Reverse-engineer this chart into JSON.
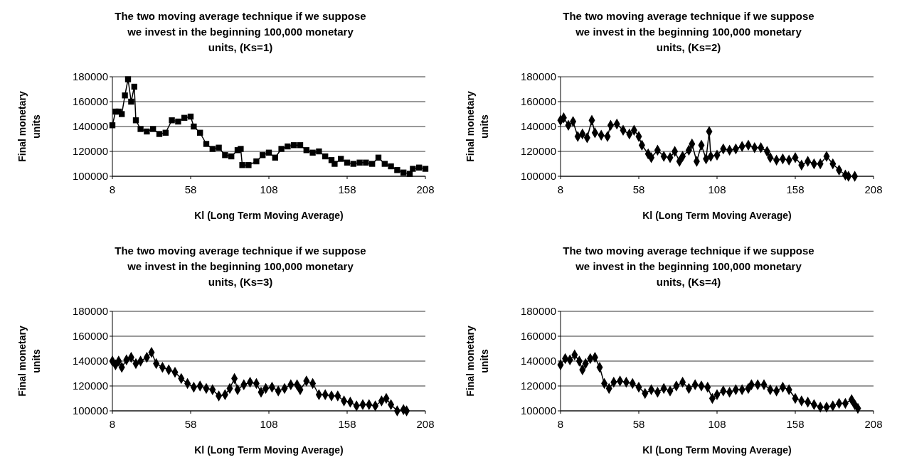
{
  "chart_data": [
    {
      "type": "line",
      "title": "The two moving average technique  if we suppose we invest in the beginning 100,000 monetary units, (Ks=1)",
      "xlabel": "Kl (Long Term Moving Average)",
      "ylabel": "Final monetary units",
      "xlim": [
        8,
        208
      ],
      "xticks": [
        8,
        58,
        108,
        158,
        208
      ],
      "ylim": [
        100000,
        180000
      ],
      "yticks": [
        100000,
        120000,
        140000,
        160000,
        180000
      ],
      "grid": "y",
      "marker": "square",
      "series": [
        {
          "color": "#000000",
          "x": [
            8,
            10,
            12,
            14,
            16,
            18,
            20,
            22,
            23,
            26,
            30,
            34,
            38,
            42,
            46,
            50,
            54,
            58,
            60,
            64,
            68,
            72,
            76,
            80,
            84,
            88,
            90,
            91,
            95,
            100,
            104,
            108,
            112,
            116,
            120,
            124,
            128,
            132,
            136,
            140,
            144,
            148,
            150,
            154,
            158,
            162,
            166,
            170,
            174,
            178,
            182,
            186,
            190,
            194,
            198,
            200,
            204,
            208
          ],
          "values": [
            141000,
            152000,
            152000,
            150000,
            165000,
            178000,
            160000,
            172000,
            145000,
            138000,
            136000,
            138000,
            134000,
            135000,
            145000,
            144000,
            147000,
            148000,
            140000,
            135000,
            126000,
            122000,
            123000,
            117000,
            116000,
            121000,
            122000,
            109000,
            109000,
            112000,
            117000,
            119000,
            115000,
            122000,
            124000,
            125000,
            125000,
            121000,
            119000,
            120000,
            116000,
            113000,
            110000,
            114000,
            111000,
            110000,
            111000,
            111000,
            110000,
            115000,
            110000,
            108000,
            105000,
            103000,
            102000,
            106000,
            107000,
            106000
          ]
        }
      ]
    },
    {
      "type": "line",
      "title": "The two moving average technique  if we suppose we invest in the beginning 100,000 monetary units, (Ks=2)",
      "xlabel": "Kl (Long Term Moving Average)",
      "ylabel": "Final monetary units",
      "xlim": [
        8,
        208
      ],
      "xticks": [
        8,
        58,
        108,
        158,
        208
      ],
      "ylim": [
        100000,
        180000
      ],
      "yticks": [
        100000,
        120000,
        140000,
        160000,
        180000
      ],
      "grid": "y",
      "marker": "diamond",
      "series": [
        {
          "color": "#000000",
          "x": [
            8,
            10,
            13,
            16,
            19,
            22,
            25,
            28,
            30,
            34,
            38,
            40,
            44,
            48,
            52,
            55,
            58,
            60,
            64,
            66,
            70,
            74,
            78,
            81,
            84,
            86,
            90,
            92,
            95,
            98,
            101,
            103,
            104,
            108,
            112,
            116,
            120,
            124,
            128,
            132,
            136,
            140,
            142,
            146,
            150,
            154,
            158,
            162,
            166,
            170,
            174,
            178,
            182,
            186,
            190,
            192,
            196
          ],
          "values": [
            145000,
            147000,
            141000,
            144000,
            132000,
            134000,
            131000,
            145000,
            135000,
            133000,
            132000,
            141000,
            142000,
            137000,
            134000,
            137000,
            132000,
            125000,
            118000,
            115000,
            121000,
            116000,
            115000,
            120000,
            112000,
            116000,
            121000,
            126000,
            112000,
            125000,
            114000,
            136000,
            116000,
            117000,
            122000,
            121000,
            122000,
            124000,
            125000,
            123000,
            123000,
            120000,
            115000,
            113000,
            114000,
            113000,
            115000,
            109000,
            112000,
            110000,
            110000,
            116000,
            110000,
            105000,
            101000,
            100000,
            100000
          ]
        }
      ]
    },
    {
      "type": "line",
      "title": "The two moving average technique  if we suppose we invest in the beginning 100,000 monetary units, (Ks=3)",
      "xlabel": "Kl (Long Term Moving Average)",
      "ylabel": "Final monetary units",
      "xlim": [
        8,
        208
      ],
      "xticks": [
        8,
        58,
        108,
        158,
        208
      ],
      "ylim": [
        100000,
        180000
      ],
      "yticks": [
        100000,
        120000,
        140000,
        160000,
        180000
      ],
      "grid": "y",
      "marker": "diamond",
      "series": [
        {
          "color": "#000000",
          "x": [
            8,
            10,
            12,
            14,
            17,
            20,
            23,
            26,
            30,
            33,
            36,
            40,
            44,
            48,
            52,
            56,
            60,
            64,
            68,
            72,
            76,
            80,
            83,
            86,
            88,
            92,
            96,
            100,
            103,
            106,
            110,
            114,
            118,
            122,
            126,
            128,
            132,
            136,
            140,
            144,
            148,
            152,
            156,
            160,
            164,
            168,
            172,
            176,
            180,
            183,
            186,
            190,
            194,
            196
          ],
          "values": [
            140000,
            137000,
            140000,
            135000,
            141000,
            143000,
            138000,
            140000,
            143000,
            147000,
            138000,
            135000,
            133000,
            131000,
            126000,
            122000,
            119000,
            120000,
            118000,
            117000,
            112000,
            113000,
            118000,
            126000,
            117000,
            121000,
            123000,
            122000,
            115000,
            118000,
            119000,
            116000,
            118000,
            121000,
            121000,
            117000,
            124000,
            122000,
            113000,
            113000,
            112000,
            112000,
            108000,
            107000,
            104000,
            105000,
            105000,
            104000,
            108000,
            110000,
            105000,
            100000,
            101000,
            100000
          ]
        }
      ]
    },
    {
      "type": "line",
      "title": "The two moving average technique  if we suppose we invest in the beginning 100,000 monetary units, (Ks=4)",
      "xlabel": "Kl (Long Term Moving Average)",
      "ylabel": "Final monetary units",
      "xlim": [
        8,
        208
      ],
      "xticks": [
        8,
        58,
        108,
        158,
        208
      ],
      "ylim": [
        100000,
        180000
      ],
      "yticks": [
        100000,
        120000,
        140000,
        160000,
        180000
      ],
      "grid": "y",
      "marker": "diamond",
      "series": [
        {
          "color": "#000000",
          "x": [
            8,
            11,
            14,
            17,
            20,
            22,
            24,
            27,
            30,
            33,
            36,
            39,
            42,
            46,
            50,
            54,
            58,
            62,
            66,
            70,
            74,
            78,
            82,
            86,
            90,
            94,
            98,
            102,
            105,
            108,
            112,
            116,
            120,
            124,
            128,
            130,
            134,
            138,
            142,
            146,
            150,
            154,
            158,
            162,
            166,
            170,
            174,
            178,
            182,
            186,
            190,
            194,
            196,
            198
          ],
          "values": [
            137000,
            142000,
            141000,
            145000,
            140000,
            133000,
            138000,
            142000,
            143000,
            135000,
            122000,
            118000,
            123000,
            124000,
            123000,
            122000,
            119000,
            114000,
            117000,
            115000,
            118000,
            116000,
            120000,
            123000,
            118000,
            121000,
            120000,
            119000,
            110000,
            113000,
            116000,
            115000,
            117000,
            117000,
            118000,
            121000,
            121000,
            121000,
            117000,
            116000,
            119000,
            117000,
            110000,
            108000,
            107000,
            105000,
            103000,
            103000,
            104000,
            106000,
            106000,
            109000,
            105000,
            102000
          ]
        }
      ]
    }
  ]
}
